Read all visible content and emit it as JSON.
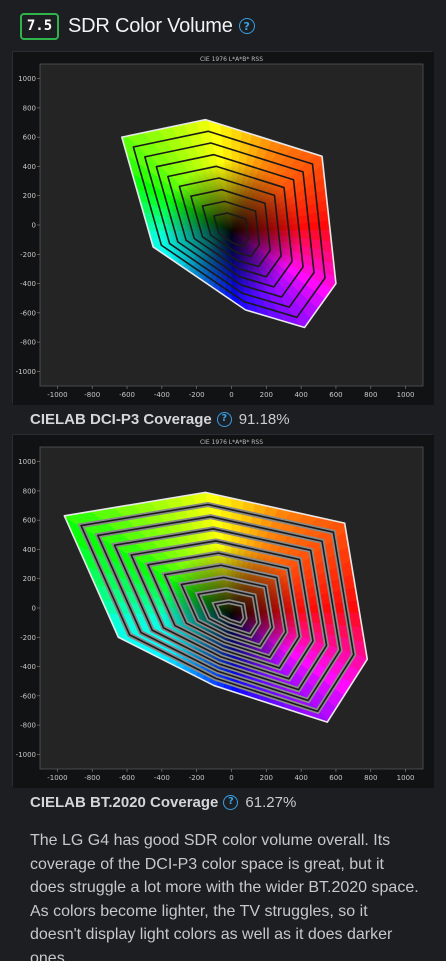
{
  "section": {
    "score": "7.5",
    "title": "SDR Color Volume",
    "help_icon": "question-circle-icon"
  },
  "charts": [
    {
      "plot_title": "CIE 1976 L*A*B* RSS",
      "caption_label": "CIELAB DCI-P3 Coverage",
      "caption_value": "91.18%"
    },
    {
      "plot_title": "CIE 1976 L*A*B* RSS",
      "caption_label": "CIELAB BT.2020 Coverage",
      "caption_value": "61.27%"
    }
  ],
  "chart_data": [
    {
      "type": "scatter",
      "title": "CIE 1976 L*A*B* RSS",
      "x_ticks": [
        -1000,
        -800,
        -600,
        -400,
        -200,
        0,
        200,
        400,
        600,
        800,
        1000
      ],
      "y_ticks": [
        1000,
        800,
        600,
        400,
        200,
        0,
        -200,
        -400,
        -600,
        -800,
        -1000
      ],
      "xlim": [
        -1100,
        1100
      ],
      "ylim": [
        -1100,
        1100
      ],
      "grid": false,
      "target_gamut": "DCI-P3"
    },
    {
      "type": "scatter",
      "title": "CIE 1976 L*A*B* RSS",
      "x_ticks": [
        -1000,
        -800,
        -600,
        -400,
        -200,
        0,
        200,
        400,
        600,
        800,
        1000
      ],
      "y_ticks": [
        1000,
        800,
        600,
        400,
        200,
        0,
        -200,
        -400,
        -600,
        -800,
        -1000
      ],
      "xlim": [
        -1100,
        1100
      ],
      "ylim": [
        -1100,
        1100
      ],
      "grid": false,
      "target_gamut": "BT.2020"
    }
  ],
  "description": "The LG G4 has good SDR color volume overall. Its coverage of the DCI-P3 color space is great, but it does struggle a lot more with the wider BT.2020 space. As colors become lighter, the TV struggles, so it doesn't display light colors as well as it does darker ones."
}
